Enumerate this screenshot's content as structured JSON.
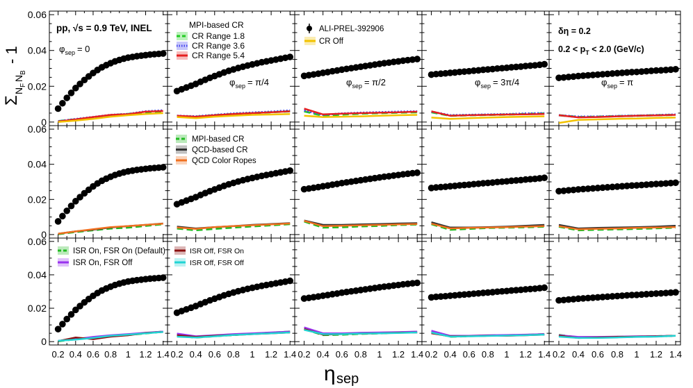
{
  "figure": {
    "xlabel": "η",
    "xlabel_sub": "sep",
    "ylabel": "Σ",
    "ylabel_sub": "N",
    "ylabel_subsub1": "F",
    "ylabel_subsub2": "B",
    "ylabel_tail": " - 1",
    "system_label": "pp, √s = 0.9 TeV, INEL",
    "deta_label": "δη = 0.2",
    "pt_label": "0.2 < p",
    "pt_sub": "T",
    "pt_tail": " < 2.0 (GeV/c)",
    "phi_prefix": "φ",
    "phi_sub": "sep",
    "phi_values": [
      "= 0",
      "= π/4",
      "= π/2",
      "= 3π/4",
      "= π"
    ],
    "x_tick_labels": [
      "0.2",
      "0.4",
      "0.6",
      "0.8",
      "1",
      "1.2",
      "1.4"
    ],
    "y_tick_labels": [
      "0",
      "0.02",
      "0.04",
      "0.06"
    ],
    "legends": {
      "row1_mpi_title": "MPI-based CR",
      "row1_mpi_entries": [
        "CR Range 1.8",
        "CR Range 3.6",
        "CR Range 5.4"
      ],
      "row1_data_entries": [
        "ALI-PREL-392906",
        "CR Off"
      ],
      "row2_entries": [
        "MPI-based CR",
        "QCD-based CR",
        "QCD Color Ropes"
      ],
      "row3_left_entries": [
        "ISR On, FSR On (Default)",
        "ISR On, FSR Off"
      ],
      "row3_right_entries": [
        "ISR Off, FSR On",
        "ISR Off, FSR Off"
      ]
    },
    "colors": {
      "data": "#000000",
      "cr18": "#22cc22",
      "cr36": "#4444ee",
      "cr54": "#e62020",
      "croff": "#f2c200",
      "mpi": "#22bb22",
      "qcd": "#333333",
      "ropes": "#f07020",
      "isr_on_fsr_on": "#22bb22",
      "isr_on_fsr_off": "#9933ee",
      "isr_off_fsr_on": "#8b1010",
      "isr_off_fsr_off": "#22d4d4"
    }
  },
  "chart_data": {
    "type": "scatter",
    "layout": "3 rows x 5 columns",
    "xlabel": "η_sep",
    "ylabel": "Σ_{N_F N_B} - 1",
    "xlim": [
      0.1,
      1.45
    ],
    "ylim": [
      -0.002,
      0.062
    ],
    "x": [
      0.2,
      0.25,
      0.3,
      0.35,
      0.4,
      0.45,
      0.5,
      0.55,
      0.6,
      0.65,
      0.7,
      0.75,
      0.8,
      0.85,
      0.9,
      0.95,
      1.0,
      1.05,
      1.1,
      1.15,
      1.2,
      1.25,
      1.3,
      1.35,
      1.4
    ],
    "data_series": [
      {
        "phi": "0",
        "values": [
          0.0075,
          0.0105,
          0.0135,
          0.0163,
          0.019,
          0.0213,
          0.0235,
          0.0255,
          0.0274,
          0.0291,
          0.0306,
          0.0318,
          0.0329,
          0.0339,
          0.0347,
          0.0354,
          0.036,
          0.0364,
          0.0368,
          0.0371,
          0.0374,
          0.0377,
          0.0379,
          0.0381,
          0.0383
        ]
      },
      {
        "phi": "π/4",
        "values": [
          0.0173,
          0.0183,
          0.0193,
          0.0203,
          0.0213,
          0.0225,
          0.0236,
          0.0247,
          0.0257,
          0.0267,
          0.0277,
          0.0286,
          0.0294,
          0.0302,
          0.0309,
          0.0316,
          0.0322,
          0.0328,
          0.0334,
          0.0339,
          0.0344,
          0.0349,
          0.0354,
          0.0359,
          0.0364
        ]
      },
      {
        "phi": "π/2",
        "values": [
          0.0258,
          0.0262,
          0.0266,
          0.027,
          0.0275,
          0.0279,
          0.0284,
          0.0288,
          0.0293,
          0.0297,
          0.0301,
          0.0305,
          0.0309,
          0.0313,
          0.0317,
          0.0321,
          0.0325,
          0.0329,
          0.0332,
          0.0336,
          0.0339,
          0.0343,
          0.0346,
          0.0349,
          0.0352
        ]
      },
      {
        "phi": "3π/4",
        "values": [
          0.0265,
          0.0268,
          0.027,
          0.0272,
          0.0275,
          0.0277,
          0.028,
          0.0282,
          0.0284,
          0.0287,
          0.0289,
          0.0292,
          0.0294,
          0.0296,
          0.0299,
          0.0301,
          0.0303,
          0.0306,
          0.0308,
          0.031,
          0.0313,
          0.0315,
          0.0317,
          0.032,
          0.0323
        ]
      },
      {
        "phi": "π",
        "values": [
          0.0247,
          0.0249,
          0.0252,
          0.0254,
          0.0257,
          0.0259,
          0.0261,
          0.0263,
          0.0265,
          0.0267,
          0.0269,
          0.0271,
          0.0273,
          0.0275,
          0.0277,
          0.0279,
          0.028,
          0.0282,
          0.0284,
          0.0286,
          0.0288,
          0.0289,
          0.0291,
          0.0293,
          0.0295
        ]
      }
    ],
    "model_x": [
      0.2,
      0.4,
      0.6,
      0.8,
      1.0,
      1.2,
      1.4
    ],
    "rows": [
      {
        "row": 1,
        "models": [
          {
            "name": "CR Range 1.8",
            "color_key": "cr18",
            "style": "dashed",
            "values": [
              [
                0.0005,
                0.0015,
                0.0025,
                0.0038,
                0.0045,
                0.0055,
                0.006
              ],
              [
                0.0033,
                0.003,
                0.0038,
                0.0045,
                0.005,
                0.0055,
                0.006
              ],
              [
                0.006,
                0.0035,
                0.0042,
                0.0047,
                0.005,
                0.0053,
                0.0055
              ],
              [
                0.0055,
                0.0035,
                0.0038,
                0.004,
                0.0042,
                0.0045,
                0.0048
              ],
              [
                0.0038,
                0.0028,
                0.003,
                0.0033,
                0.0035,
                0.0038,
                0.004
              ]
            ]
          },
          {
            "name": "CR Range 3.6",
            "color_key": "cr36",
            "style": "dotted",
            "values": [
              [
                0.0005,
                0.0017,
                0.0028,
                0.004,
                0.0045,
                0.006,
                0.0065
              ],
              [
                0.0035,
                0.0032,
                0.004,
                0.0048,
                0.0053,
                0.0058,
                0.0065
              ],
              [
                0.0065,
                0.004,
                0.0048,
                0.0052,
                0.0055,
                0.0058,
                0.006
              ],
              [
                0.0058,
                0.0038,
                0.004,
                0.0042,
                0.0044,
                0.0048,
                0.005
              ],
              [
                0.0038,
                0.003,
                0.0031,
                0.0034,
                0.0036,
                0.0039,
                0.0042
              ]
            ]
          },
          {
            "name": "CR Range 5.4",
            "color_key": "cr54",
            "style": "solid",
            "values": [
              [
                0.0003,
                0.0015,
                0.0028,
                0.004,
                0.0044,
                0.0058,
                0.0062
              ],
              [
                0.0035,
                0.003,
                0.0038,
                0.0045,
                0.005,
                0.0055,
                0.006
              ],
              [
                0.0075,
                0.0043,
                0.0047,
                0.005,
                0.0052,
                0.0055,
                0.0058
              ],
              [
                0.006,
                0.0035,
                0.0038,
                0.004,
                0.0042,
                0.0043,
                0.0045
              ],
              [
                0.0038,
                0.0026,
                0.0028,
                0.0032,
                0.0035,
                0.0037,
                0.004
              ]
            ]
          },
          {
            "name": "CR Off",
            "color_key": "croff",
            "style": "solid",
            "values": [
              [
                0.0,
                0.0008,
                0.0018,
                0.003,
                0.0038,
                0.0045,
                0.005
              ],
              [
                0.0028,
                0.0022,
                0.003,
                0.0035,
                0.004,
                0.0042,
                0.0045
              ],
              [
                0.0035,
                0.0028,
                0.003,
                0.0032,
                0.0035,
                0.0038,
                0.004
              ],
              [
                0.0025,
                0.0018,
                0.0022,
                0.0025,
                0.0028,
                0.003,
                0.0032
              ],
              [
                -0.0005,
                0.0012,
                0.0015,
                0.0018,
                0.002,
                0.0023,
                0.0025
              ]
            ]
          }
        ]
      },
      {
        "row": 2,
        "models": [
          {
            "name": "MPI-based CR",
            "color_key": "mpi",
            "style": "dashed",
            "values": [
              [
                0.0003,
                0.0015,
                0.0025,
                0.0035,
                0.004,
                0.005,
                0.006
              ],
              [
                0.0035,
                0.0025,
                0.0033,
                0.004,
                0.0047,
                0.0053,
                0.006
              ],
              [
                0.0075,
                0.004,
                0.0042,
                0.0047,
                0.005,
                0.0055,
                0.0058
              ],
              [
                0.006,
                0.0028,
                0.0033,
                0.0038,
                0.004,
                0.0042,
                0.0045
              ],
              [
                0.0045,
                0.0025,
                0.0028,
                0.003,
                0.0033,
                0.0036,
                0.004
              ]
            ]
          },
          {
            "name": "QCD-based CR",
            "color_key": "qcd",
            "style": "solid",
            "values": [
              [
                0.0005,
                0.0018,
                0.0028,
                0.004,
                0.0048,
                0.0055,
                0.0063
              ],
              [
                0.0045,
                0.0035,
                0.0042,
                0.0048,
                0.0055,
                0.006,
                0.0065
              ],
              [
                0.008,
                0.0055,
                0.0055,
                0.0058,
                0.006,
                0.0063,
                0.0065
              ],
              [
                0.007,
                0.004,
                0.004,
                0.0042,
                0.0045,
                0.005,
                0.0055
              ],
              [
                0.0055,
                0.0035,
                0.0038,
                0.004,
                0.0042,
                0.0045,
                0.005
              ]
            ]
          },
          {
            "name": "QCD Color Ropes",
            "color_key": "ropes",
            "style": "solid",
            "values": [
              [
                0.0005,
                0.0018,
                0.003,
                0.0042,
                0.0048,
                0.0055,
                0.0062
              ],
              [
                0.004,
                0.0032,
                0.0042,
                0.0048,
                0.0053,
                0.0058,
                0.0063
              ],
              [
                0.0078,
                0.0048,
                0.005,
                0.0053,
                0.0055,
                0.0058,
                0.006
              ],
              [
                0.0062,
                0.0035,
                0.0038,
                0.004,
                0.0042,
                0.0045,
                0.0048
              ],
              [
                0.0048,
                0.003,
                0.0033,
                0.0035,
                0.0038,
                0.004,
                0.0043
              ]
            ]
          }
        ]
      },
      {
        "row": 3,
        "models": [
          {
            "name": "ISR On, FSR On (Default)",
            "color_key": "isr_on_fsr_on",
            "style": "dashed",
            "values": [
              [
                0.0003,
                0.0015,
                0.0025,
                0.0035,
                0.004,
                0.005,
                0.006
              ],
              [
                0.0035,
                0.0025,
                0.0033,
                0.004,
                0.0047,
                0.0053,
                0.006
              ],
              [
                0.0075,
                0.004,
                0.0042,
                0.0047,
                0.005,
                0.0055,
                0.0058
              ],
              [
                0.0058,
                0.003,
                0.0033,
                0.0036,
                0.0038,
                0.004,
                0.0045
              ],
              [
                0.004,
                0.0025,
                0.0026,
                0.0028,
                0.003,
                0.0032,
                0.0035
              ]
            ]
          },
          {
            "name": "ISR On, FSR Off",
            "color_key": "isr_on_fsr_off",
            "style": "solid",
            "values": [
              [
                0.0005,
                0.0015,
                0.0028,
                0.0038,
                0.0045,
                0.0053,
                0.006
              ],
              [
                0.0048,
                0.0032,
                0.0038,
                0.0045,
                0.005,
                0.0055,
                0.006
              ],
              [
                0.0085,
                0.005,
                0.005,
                0.0053,
                0.0055,
                0.0057,
                0.006
              ],
              [
                0.0065,
                0.0035,
                0.0035,
                0.0038,
                0.004,
                0.0042,
                0.0045
              ],
              [
                0.0038,
                0.0028,
                0.0028,
                0.003,
                0.0032,
                0.0033,
                0.0035
              ]
            ]
          },
          {
            "name": "ISR Off, FSR On",
            "color_key": "isr_off_fsr_on",
            "style": "solid",
            "values": [
              [
                0.0003,
                0.0025,
                0.0015,
                0.003,
                0.0038,
                0.0052,
                0.0058
              ],
              [
                0.0038,
                0.0028,
                0.0035,
                0.004,
                0.0045,
                0.005,
                0.0055
              ],
              [
                0.0075,
                0.0042,
                0.0045,
                0.0048,
                0.005,
                0.0053,
                0.0055
              ],
              [
                0.005,
                0.0032,
                0.0033,
                0.0035,
                0.0035,
                0.0038,
                0.0042
              ],
              [
                0.0035,
                0.0022,
                0.0025,
                0.0028,
                0.003,
                0.0032,
                0.0035
              ]
            ]
          },
          {
            "name": "ISR Off, FSR Off",
            "color_key": "isr_off_fsr_off",
            "style": "solid",
            "values": [
              [
                0.0005,
                0.0012,
                0.0022,
                0.0035,
                0.0042,
                0.005,
                0.0058
              ],
              [
                0.003,
                0.0025,
                0.0032,
                0.004,
                0.0045,
                0.005,
                0.0055
              ],
              [
                0.007,
                0.0045,
                0.0045,
                0.0048,
                0.005,
                0.0052,
                0.0055
              ],
              [
                0.0055,
                0.003,
                0.0032,
                0.0034,
                0.0036,
                0.0038,
                0.0042
              ],
              [
                0.003,
                0.0022,
                0.0022,
                0.0025,
                0.0028,
                0.003,
                0.0035
              ]
            ]
          }
        ]
      }
    ]
  }
}
